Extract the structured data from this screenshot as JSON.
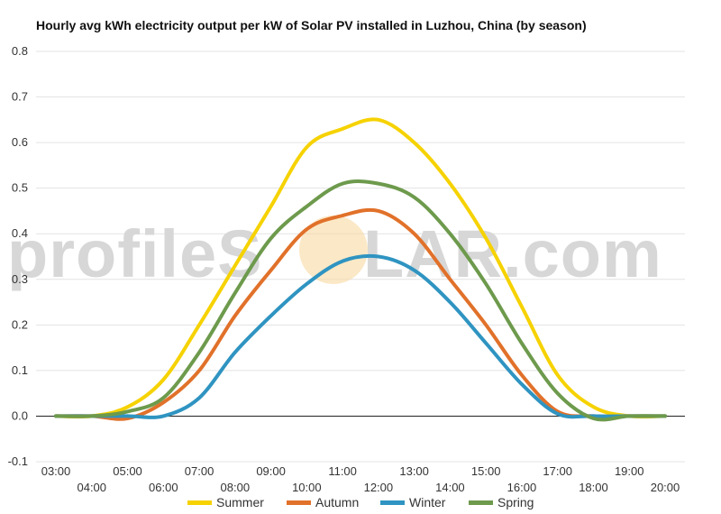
{
  "chart_data": {
    "type": "line",
    "title": "Hourly avg kWh electricity output per kW of Solar PV installed in Luzhou, China (by season)",
    "xlabel": "",
    "ylabel": "",
    "ylim": [
      -0.1,
      0.8
    ],
    "y_ticks": [
      "-0.1",
      "0.0",
      "0.1",
      "0.2",
      "0.3",
      "0.4",
      "0.5",
      "0.6",
      "0.7",
      "0.8"
    ],
    "x": [
      "03:00",
      "04:00",
      "05:00",
      "06:00",
      "07:00",
      "08:00",
      "09:00",
      "10:00",
      "11:00",
      "12:00",
      "13:00",
      "14:00",
      "15:00",
      "16:00",
      "17:00",
      "18:00",
      "19:00",
      "20:00"
    ],
    "grid": true,
    "legend_position": "bottom",
    "series": [
      {
        "name": "Summer",
        "color": "#f6d200",
        "values": [
          0.0,
          0.0,
          0.02,
          0.08,
          0.2,
          0.33,
          0.46,
          0.59,
          0.63,
          0.65,
          0.6,
          0.51,
          0.39,
          0.24,
          0.09,
          0.02,
          0.0,
          0.0
        ]
      },
      {
        "name": "Autumn",
        "color": "#e1712a",
        "values": [
          0.0,
          0.0,
          -0.005,
          0.03,
          0.1,
          0.22,
          0.32,
          0.41,
          0.44,
          0.45,
          0.4,
          0.3,
          0.2,
          0.09,
          0.01,
          0.0,
          0.0,
          0.0
        ]
      },
      {
        "name": "Winter",
        "color": "#2f94c1",
        "values": [
          0.0,
          0.0,
          0.0,
          0.0,
          0.04,
          0.14,
          0.22,
          0.29,
          0.34,
          0.35,
          0.32,
          0.25,
          0.16,
          0.07,
          0.005,
          0.0,
          0.0,
          0.0
        ]
      },
      {
        "name": "Spring",
        "color": "#6d9a4c",
        "values": [
          0.0,
          0.0,
          0.01,
          0.04,
          0.14,
          0.27,
          0.39,
          0.46,
          0.51,
          0.51,
          0.48,
          0.4,
          0.29,
          0.16,
          0.05,
          -0.005,
          0.0,
          0.0
        ]
      }
    ]
  },
  "watermark": {
    "text_before": "profileS",
    "text_after": "LAR.com"
  }
}
